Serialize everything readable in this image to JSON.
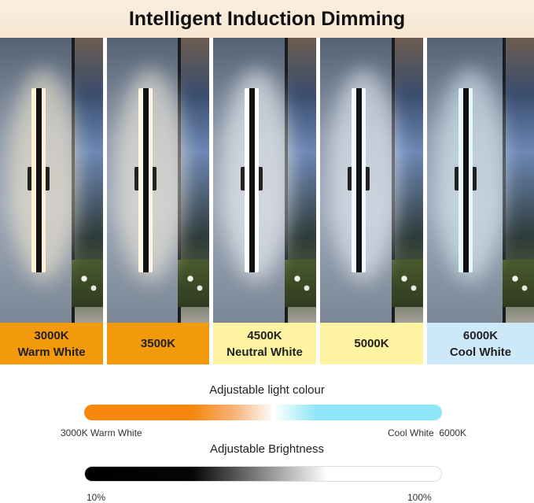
{
  "title": "Intelligent Induction Dimming",
  "panels": [
    {
      "line1": "3000K",
      "line2": "Warm White",
      "label_color": "#f39a0c",
      "light_color": "#fff1d6"
    },
    {
      "line1": "3500K",
      "line2": "",
      "label_color": "#f39a0c",
      "light_color": "#fff5e4"
    },
    {
      "line1": "4500K",
      "line2": "Neutral White",
      "label_color": "#fdf3a0",
      "light_color": "#ffffff"
    },
    {
      "line1": "5000K",
      "line2": "",
      "label_color": "#fdf3a0",
      "light_color": "#f4f8ff"
    },
    {
      "line1": "6000K",
      "line2": "Cool White",
      "label_color": "#cde9f9",
      "light_color": "#e6f6ff"
    }
  ],
  "colour_scale": {
    "title": "Adjustable light colour",
    "left": "3000K Warm White",
    "right": "Cool White  6000K"
  },
  "brightness_scale": {
    "title": "Adjustable Brightness",
    "left": "10%",
    "right": "100%"
  }
}
